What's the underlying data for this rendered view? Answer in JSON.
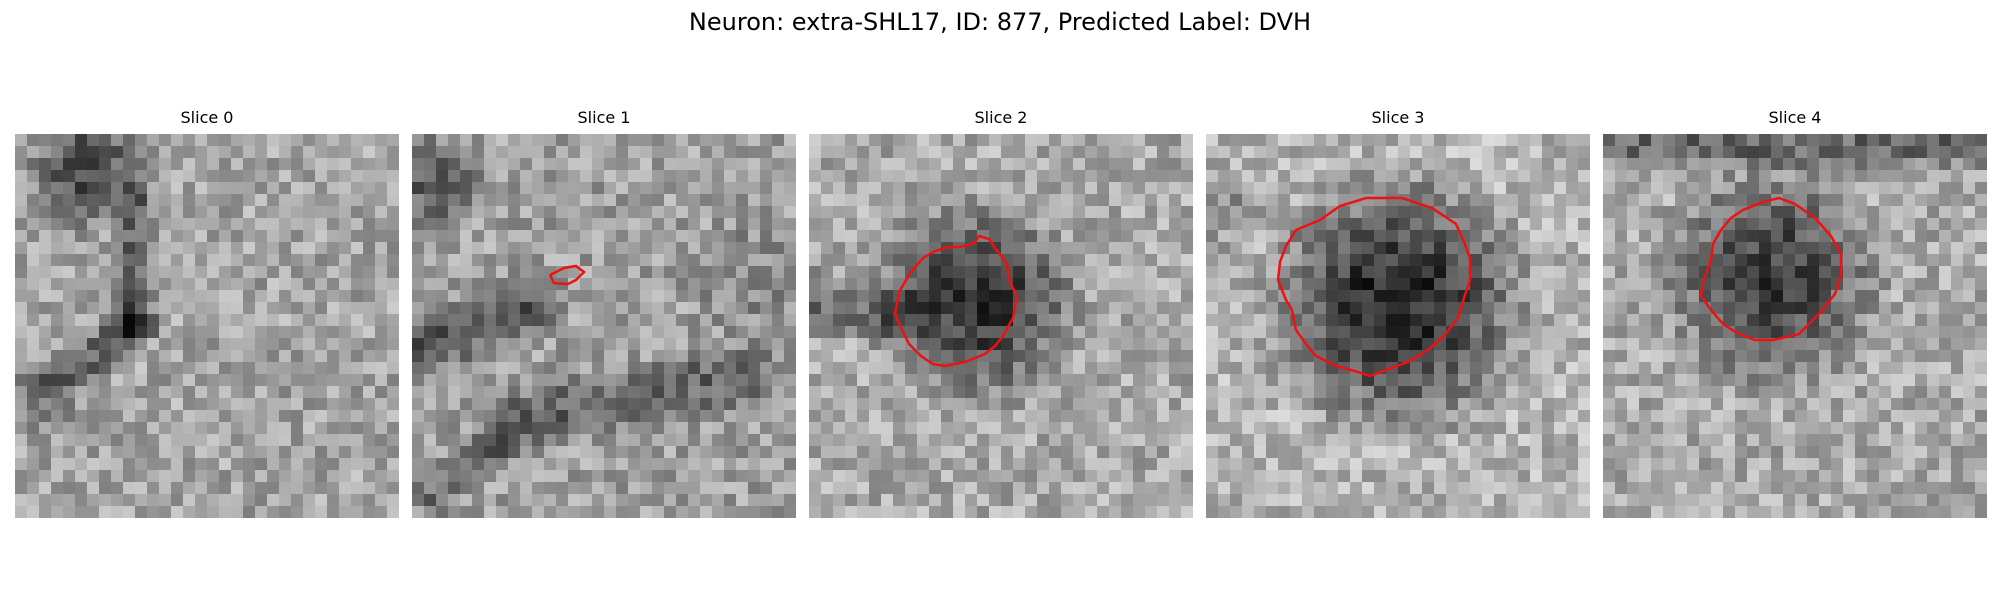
{
  "figure": {
    "title": "Neuron: extra-SHL17, ID: 877, Predicted Label: DVH"
  },
  "panels": [
    {
      "title": "Slice 0",
      "has_outline": false
    },
    {
      "title": "Slice 1",
      "has_outline": true
    },
    {
      "title": "Slice 2",
      "has_outline": true
    },
    {
      "title": "Slice 3",
      "has_outline": true
    },
    {
      "title": "Slice 4",
      "has_outline": true
    }
  ],
  "colors": {
    "outline": "#ee1111",
    "background": "#ffffff"
  }
}
